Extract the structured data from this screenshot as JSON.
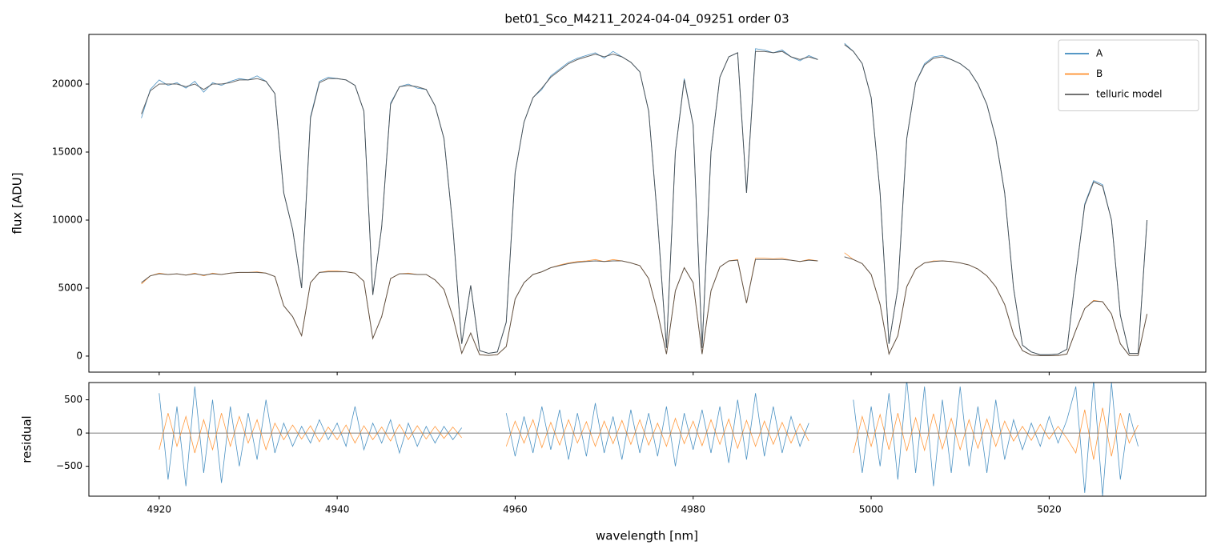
{
  "chart_data": [
    {
      "type": "line",
      "title": "bet01_Sco_M4211_2024-04-04_09251  order 03",
      "ylabel": "flux [ADU]",
      "x": [
        4918,
        4919,
        4920,
        4921,
        4922,
        4923,
        4924,
        4925,
        4926,
        4927,
        4928,
        4929,
        4930,
        4931,
        4932,
        4933,
        4934,
        4935,
        4936,
        4937,
        4938,
        4939,
        4940,
        4941,
        4942,
        4943,
        4944,
        4945,
        4946,
        4947,
        4948,
        4949,
        4950,
        4951,
        4952,
        4953,
        4954,
        4955,
        4956,
        4957,
        4958,
        4959,
        4960,
        4961,
        4962,
        4963,
        4964,
        4965,
        4966,
        4967,
        4968,
        4969,
        4970,
        4971,
        4972,
        4973,
        4974,
        4975,
        4976,
        4977,
        4978,
        4979,
        4980,
        4981,
        4982,
        4983,
        4984,
        4985,
        4986,
        4987,
        4988,
        4989,
        4990,
        4991,
        4992,
        4993,
        4994,
        4995,
        4996,
        4997,
        4998,
        4999,
        5000,
        5001,
        5002,
        5003,
        5004,
        5005,
        5006,
        5007,
        5008,
        5009,
        5010,
        5011,
        5012,
        5013,
        5014,
        5015,
        5016,
        5017,
        5018,
        5019,
        5020,
        5021,
        5022,
        5023,
        5024,
        5025,
        5026,
        5027,
        5028,
        5029,
        5030,
        5031
      ],
      "series": [
        {
          "name": "A",
          "color": "#1f77b4",
          "values": [
            17500,
            19600,
            20300,
            19900,
            20100,
            19700,
            20200,
            19400,
            20100,
            19900,
            20200,
            20400,
            20300,
            20600,
            20200,
            19300,
            12000,
            9300,
            5000,
            17600,
            20200,
            20500,
            20400,
            20300,
            19900,
            18000,
            4500,
            9500,
            18600,
            19800,
            20000,
            19700,
            19600,
            18400,
            16000,
            9500,
            900,
            5200,
            400,
            200,
            300,
            2500,
            13500,
            17200,
            19000,
            19600,
            20600,
            21100,
            21600,
            21900,
            22100,
            22300,
            21900,
            22400,
            22000,
            21600,
            20900,
            18000,
            10000,
            600,
            15000,
            20400,
            17000,
            600,
            15000,
            20500,
            22000,
            22300,
            12000,
            22600,
            22500,
            22300,
            22500,
            22000,
            21700,
            22100,
            21800,
            null,
            null,
            23000,
            22400,
            21500,
            19000,
            12000,
            900,
            5000,
            16000,
            20100,
            21500,
            22000,
            22100,
            21800,
            21500,
            21000,
            20000,
            18500,
            16000,
            12000,
            5000,
            800,
            300,
            100,
            100,
            150,
            500,
            6000,
            11200,
            12900,
            12600,
            10000,
            3000,
            200,
            200,
            10000
          ]
        },
        {
          "name": "B",
          "color": "#ff7f0e",
          "values": [
            5300,
            5900,
            6100,
            6000,
            6050,
            5950,
            6100,
            5900,
            6100,
            6000,
            6100,
            6150,
            6150,
            6200,
            6100,
            5850,
            3700,
            2900,
            1500,
            5400,
            6150,
            6250,
            6250,
            6200,
            6100,
            5500,
            1300,
            2900,
            5700,
            6050,
            6100,
            6000,
            6000,
            5600,
            4900,
            2900,
            200,
            1700,
            100,
            50,
            100,
            700,
            4200,
            5400,
            6000,
            6200,
            6500,
            6700,
            6850,
            6950,
            7000,
            7100,
            6950,
            7100,
            7000,
            6850,
            6650,
            5700,
            3200,
            150,
            4800,
            6500,
            5400,
            150,
            4800,
            6550,
            7000,
            7100,
            3900,
            7200,
            7200,
            7150,
            7200,
            7050,
            6950,
            7100,
            7000,
            null,
            null,
            7600,
            7100,
            6800,
            6000,
            3800,
            150,
            1500,
            5100,
            6400,
            6850,
            7000,
            7000,
            6950,
            6850,
            6700,
            6400,
            5900,
            5100,
            3800,
            1600,
            400,
            80,
            30,
            30,
            40,
            150,
            1900,
            3500,
            4100,
            4000,
            3100,
            900,
            50,
            50,
            3100
          ]
        },
        {
          "name": "telluric model",
          "color": "#444444",
          "values": [
            17800,
            19500,
            20000,
            20000,
            20000,
            19800,
            20000,
            19600,
            20000,
            20000,
            20100,
            20300,
            20300,
            20400,
            20200,
            19300,
            12000,
            9300,
            5000,
            17500,
            20100,
            20400,
            20400,
            20300,
            19900,
            18000,
            4500,
            9500,
            18500,
            19800,
            19900,
            19800,
            19600,
            18400,
            16000,
            9500,
            900,
            5200,
            400,
            200,
            300,
            2500,
            13500,
            17200,
            19000,
            19700,
            20500,
            21000,
            21500,
            21800,
            22000,
            22200,
            22000,
            22200,
            22000,
            21600,
            20900,
            18000,
            10000,
            600,
            15000,
            20300,
            17000,
            600,
            15000,
            20500,
            22000,
            22300,
            12000,
            22400,
            22400,
            22300,
            22400,
            22000,
            21800,
            22000,
            21800,
            null,
            null,
            22900,
            22400,
            21500,
            19000,
            12000,
            900,
            5000,
            16000,
            20100,
            21400,
            21900,
            22000,
            21800,
            21500,
            21000,
            20000,
            18500,
            16000,
            12000,
            5000,
            800,
            300,
            100,
            100,
            150,
            500,
            6000,
            11100,
            12800,
            12500,
            10000,
            3000,
            200,
            200,
            10000
          ]
        },
        {
          "color": "#444444",
          "values": [
            5400,
            5900,
            6050,
            6000,
            6050,
            5950,
            6050,
            5950,
            6050,
            6000,
            6100,
            6150,
            6150,
            6150,
            6100,
            5850,
            3700,
            2900,
            1500,
            5400,
            6150,
            6200,
            6200,
            6200,
            6100,
            5500,
            1300,
            2900,
            5700,
            6050,
            6050,
            6000,
            6000,
            5600,
            4900,
            2900,
            200,
            1700,
            100,
            50,
            100,
            700,
            4200,
            5400,
            6000,
            6200,
            6500,
            6650,
            6800,
            6900,
            6950,
            7000,
            6950,
            7000,
            7000,
            6850,
            6650,
            5700,
            3200,
            150,
            4800,
            6500,
            5400,
            150,
            4800,
            6550,
            7000,
            7050,
            3900,
            7100,
            7100,
            7100,
            7100,
            7050,
            6950,
            7050,
            7000,
            null,
            null,
            7300,
            7100,
            6800,
            6000,
            3800,
            150,
            1500,
            5100,
            6400,
            6850,
            6950,
            7000,
            6950,
            6850,
            6700,
            6400,
            5900,
            5100,
            3800,
            1600,
            400,
            80,
            30,
            30,
            40,
            150,
            1900,
            3500,
            4050,
            4000,
            3100,
            900,
            50,
            50,
            3100
          ]
        }
      ],
      "xlim": [
        4912.1,
        5037.6
      ],
      "ylim": [
        -1180,
        23650
      ],
      "xticks": [
        4920,
        4940,
        4960,
        4980,
        5000,
        5020
      ],
      "yticks": [
        0,
        5000,
        10000,
        15000,
        20000
      ],
      "legend": "upper right"
    },
    {
      "type": "line",
      "xlabel": "wavelength [nm]",
      "ylabel": "residual",
      "x": [
        4920,
        4921,
        4922,
        4923,
        4924,
        4925,
        4926,
        4927,
        4928,
        4929,
        4930,
        4931,
        4932,
        4933,
        4934,
        4935,
        4936,
        4937,
        4938,
        4939,
        4940,
        4941,
        4942,
        4943,
        4944,
        4945,
        4946,
        4947,
        4948,
        4949,
        4950,
        4951,
        4952,
        4953,
        4954,
        4955,
        4956,
        4957,
        4958,
        4959,
        4960,
        4961,
        4962,
        4963,
        4964,
        4965,
        4966,
        4967,
        4968,
        4969,
        4970,
        4971,
        4972,
        4973,
        4974,
        4975,
        4976,
        4977,
        4978,
        4979,
        4980,
        4981,
        4982,
        4983,
        4984,
        4985,
        4986,
        4987,
        4988,
        4989,
        4990,
        4991,
        4992,
        4993,
        4994,
        4995,
        4996,
        4997,
        4998,
        4999,
        5000,
        5001,
        5002,
        5003,
        5004,
        5005,
        5006,
        5007,
        5008,
        5009,
        5010,
        5011,
        5012,
        5013,
        5014,
        5015,
        5016,
        5017,
        5018,
        5019,
        5020,
        5021,
        5022,
        5023,
        5024,
        5025,
        5026,
        5027,
        5028,
        5029,
        5030
      ],
      "series": [
        {
          "color": "#1f77b4",
          "values": [
            600,
            -700,
            400,
            -800,
            700,
            -600,
            500,
            -750,
            400,
            -500,
            300,
            -400,
            500,
            -300,
            150,
            -200,
            100,
            -150,
            200,
            -100,
            150,
            -200,
            400,
            -250,
            150,
            -150,
            200,
            -300,
            150,
            -200,
            100,
            -150,
            100,
            -100,
            80,
            null,
            null,
            null,
            null,
            300,
            -350,
            250,
            -300,
            400,
            -250,
            350,
            -400,
            300,
            -350,
            450,
            -300,
            250,
            -400,
            350,
            -300,
            300,
            -350,
            400,
            -500,
            300,
            -250,
            350,
            -300,
            400,
            -450,
            500,
            -400,
            600,
            -350,
            400,
            -300,
            250,
            -200,
            150,
            null,
            null,
            null,
            null,
            500,
            -600,
            400,
            -500,
            600,
            -700,
            800,
            -600,
            700,
            -800,
            500,
            -600,
            700,
            -500,
            400,
            -600,
            500,
            -400,
            200,
            -250,
            150,
            -200,
            250,
            -150,
            200,
            700,
            -900,
            800,
            -950,
            760,
            -700,
            300,
            -200
          ]
        },
        {
          "color": "#ff7f0e",
          "values": [
            -250,
            300,
            -200,
            250,
            -300,
            200,
            -250,
            300,
            -200,
            250,
            -150,
            200,
            -250,
            150,
            -100,
            120,
            -90,
            110,
            -130,
            90,
            -100,
            120,
            -150,
            110,
            -100,
            90,
            -120,
            130,
            -100,
            110,
            -90,
            100,
            -80,
            90,
            -70,
            null,
            null,
            null,
            null,
            -200,
            180,
            -150,
            200,
            -220,
            160,
            -180,
            200,
            -150,
            170,
            -200,
            180,
            -160,
            190,
            -170,
            200,
            -180,
            150,
            -200,
            220,
            -160,
            180,
            -190,
            200,
            -170,
            210,
            -230,
            190,
            -200,
            180,
            -170,
            160,
            -150,
            140,
            -120,
            null,
            null,
            null,
            null,
            -300,
            250,
            -200,
            280,
            -250,
            300,
            -270,
            230,
            -260,
            290,
            -240,
            220,
            -250,
            200,
            -230,
            210,
            -200,
            180,
            -120,
            100,
            -110,
            130,
            -90,
            100,
            -80,
            -300,
            350,
            -400,
            380,
            -350,
            300,
            -150,
            120
          ]
        }
      ],
      "reference_line": 0,
      "xlim": [
        4912.1,
        5037.6
      ],
      "ylim": [
        -950,
        760
      ],
      "xticks": [
        4920,
        4940,
        4960,
        4980,
        5000,
        5020
      ],
      "yticks": [
        {
          "value": -500,
          "label": "−500"
        },
        0,
        500
      ]
    }
  ]
}
